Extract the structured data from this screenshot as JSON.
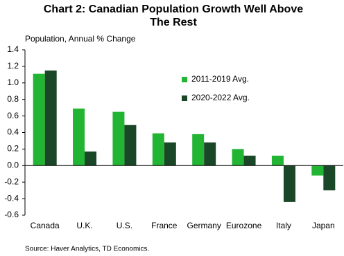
{
  "chart_data": {
    "type": "bar",
    "title": "Chart 2: Canadian Population Growth Well Above",
    "title_line2": "The Rest",
    "y_label": "Population, Annual % Change",
    "source": "Source: Haver Analytics, TD Economics.",
    "categories": [
      "Canada",
      "U.K.",
      "U.S.",
      "France",
      "Germany",
      "Eurozone",
      "Italy",
      "Japan"
    ],
    "series": [
      {
        "name": "2011-2019 Avg.",
        "color": "#22b534",
        "values": [
          1.11,
          0.69,
          0.65,
          0.39,
          0.38,
          0.2,
          0.12,
          -0.12
        ]
      },
      {
        "name": "2020-2022 Avg.",
        "color": "#1a4727",
        "values": [
          1.15,
          0.17,
          0.49,
          0.28,
          0.28,
          0.12,
          -0.44,
          -0.3
        ]
      }
    ],
    "ylim": [
      -0.6,
      1.4
    ],
    "yticks": [
      1.4,
      1.2,
      {
        "value": 1,
        "label": "1.0"
      },
      0.8,
      0.6,
      0.4,
      0.2,
      {
        "value": 0,
        "label": "0.0"
      },
      -0.2,
      -0.4,
      -0.6
    ],
    "legend": "upper-center"
  }
}
